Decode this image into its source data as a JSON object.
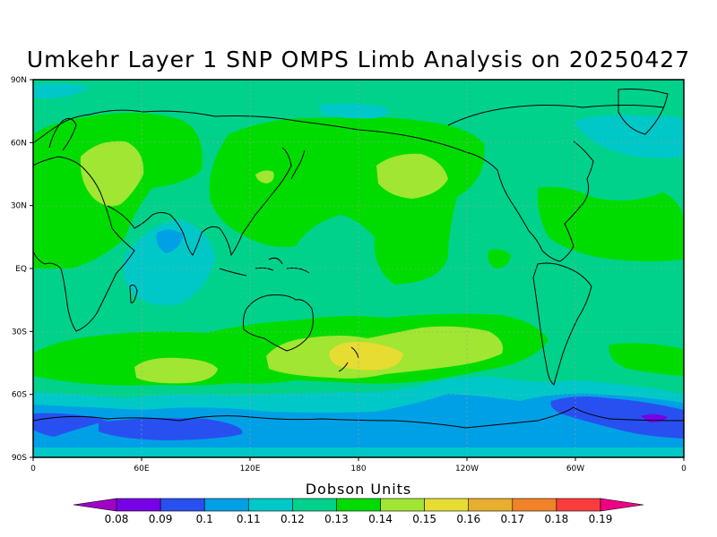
{
  "title": "Umkehr Layer 1 SNP OMPS Limb Analysis on 20250427",
  "lat_ticks": [
    "90N",
    "60N",
    "30N",
    "EQ",
    "30S",
    "60S",
    "90S"
  ],
  "lon_ticks": [
    "0",
    "60E",
    "120E",
    "180",
    "120W",
    "60W",
    "0"
  ],
  "colorbar": {
    "title": "Dobson Units",
    "labels": [
      "0.08",
      "0.09",
      "0.1",
      "0.11",
      "0.12",
      "0.13",
      "0.14",
      "0.15",
      "0.16",
      "0.17",
      "0.18",
      "0.19"
    ],
    "colors": [
      "#a000c8",
      "#7800e6",
      "#2850f0",
      "#00a0e6",
      "#00c8c8",
      "#00d28c",
      "#00dc00",
      "#a0e632",
      "#e6dc32",
      "#e6af2d",
      "#f08228",
      "#fa3c3c",
      "#f00082"
    ]
  }
}
